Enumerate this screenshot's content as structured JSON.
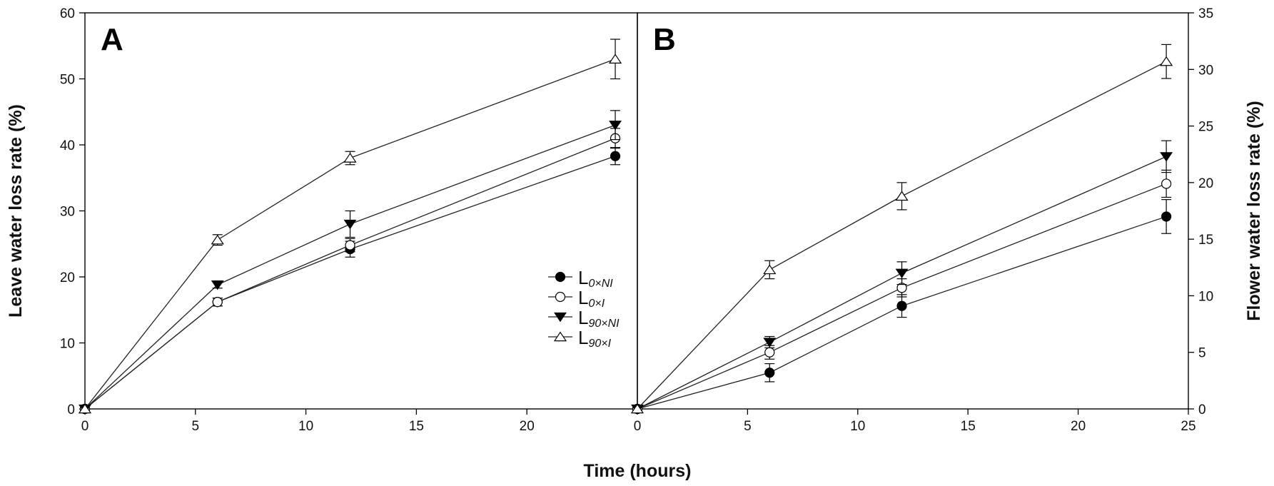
{
  "figure": {
    "shared_xlabel": "Time (hours)"
  },
  "legend": [
    {
      "main": "L",
      "sub": "0×NI",
      "marker": "filled-circle"
    },
    {
      "main": "L",
      "sub": "0×I",
      "marker": "open-circle"
    },
    {
      "main": "L",
      "sub": "90×NI",
      "marker": "filled-triangle-down"
    },
    {
      "main": "L",
      "sub": "90×I",
      "marker": "open-triangle-up"
    }
  ],
  "chart_data": [
    {
      "type": "line",
      "panel": "A",
      "ylabel": "Leave water loss rate (%)",
      "xlabel": "Time (hours)",
      "xlim": [
        0,
        25
      ],
      "ylim": [
        0,
        60
      ],
      "xticks": [
        "0",
        "5",
        "10",
        "15",
        "20"
      ],
      "yticks": [
        "0",
        "10",
        "20",
        "30",
        "40",
        "50",
        "60"
      ],
      "series": [
        {
          "name": "L0×NI",
          "marker": "filled-circle",
          "x": [
            0,
            6,
            12,
            24
          ],
          "y": [
            0,
            16.2,
            24.2,
            38.3
          ],
          "err": [
            0,
            0.6,
            1.2,
            1.3
          ]
        },
        {
          "name": "L0×I",
          "marker": "open-circle",
          "x": [
            0,
            6,
            12,
            24
          ],
          "y": [
            0,
            16.2,
            24.8,
            41.0
          ],
          "err": [
            0,
            0.6,
            1.0,
            1.5
          ]
        },
        {
          "name": "L90×NI",
          "marker": "filled-triangle-down",
          "x": [
            0,
            6,
            12,
            24
          ],
          "y": [
            0,
            18.8,
            28.0,
            43.0
          ],
          "err": [
            0,
            0.5,
            2.0,
            2.2
          ]
        },
        {
          "name": "L90×I",
          "marker": "open-triangle-up",
          "x": [
            0,
            6,
            12,
            24
          ],
          "y": [
            0,
            25.6,
            38.0,
            53.0
          ],
          "err": [
            0,
            0.8,
            1.0,
            3.0
          ]
        }
      ]
    },
    {
      "type": "line",
      "panel": "B",
      "ylabel": "Flower water loss rate (%)",
      "xlabel": "Time (hours)",
      "xlim": [
        0,
        25
      ],
      "ylim": [
        0,
        35
      ],
      "xticks": [
        "0",
        "5",
        "10",
        "15",
        "20",
        "25"
      ],
      "yticks": [
        "0",
        "5",
        "10",
        "15",
        "20",
        "25",
        "30",
        "35"
      ],
      "series": [
        {
          "name": "L0×NI",
          "marker": "filled-circle",
          "x": [
            0,
            6,
            12,
            24
          ],
          "y": [
            0,
            3.2,
            9.1,
            17.0
          ],
          "err": [
            0,
            0.8,
            1.0,
            1.5
          ]
        },
        {
          "name": "L0×I",
          "marker": "open-circle",
          "x": [
            0,
            6,
            12,
            24
          ],
          "y": [
            0,
            5.0,
            10.7,
            19.9
          ],
          "err": [
            0,
            0.6,
            0.8,
            1.2
          ]
        },
        {
          "name": "L90×NI",
          "marker": "filled-triangle-down",
          "x": [
            0,
            6,
            12,
            24
          ],
          "y": [
            0,
            5.9,
            12.0,
            22.3
          ],
          "err": [
            0,
            0.5,
            1.0,
            1.4
          ]
        },
        {
          "name": "L90×I",
          "marker": "open-triangle-up",
          "x": [
            0,
            6,
            12,
            24
          ],
          "y": [
            0,
            12.3,
            18.8,
            30.7
          ],
          "err": [
            0,
            0.8,
            1.2,
            1.5
          ]
        }
      ]
    }
  ]
}
